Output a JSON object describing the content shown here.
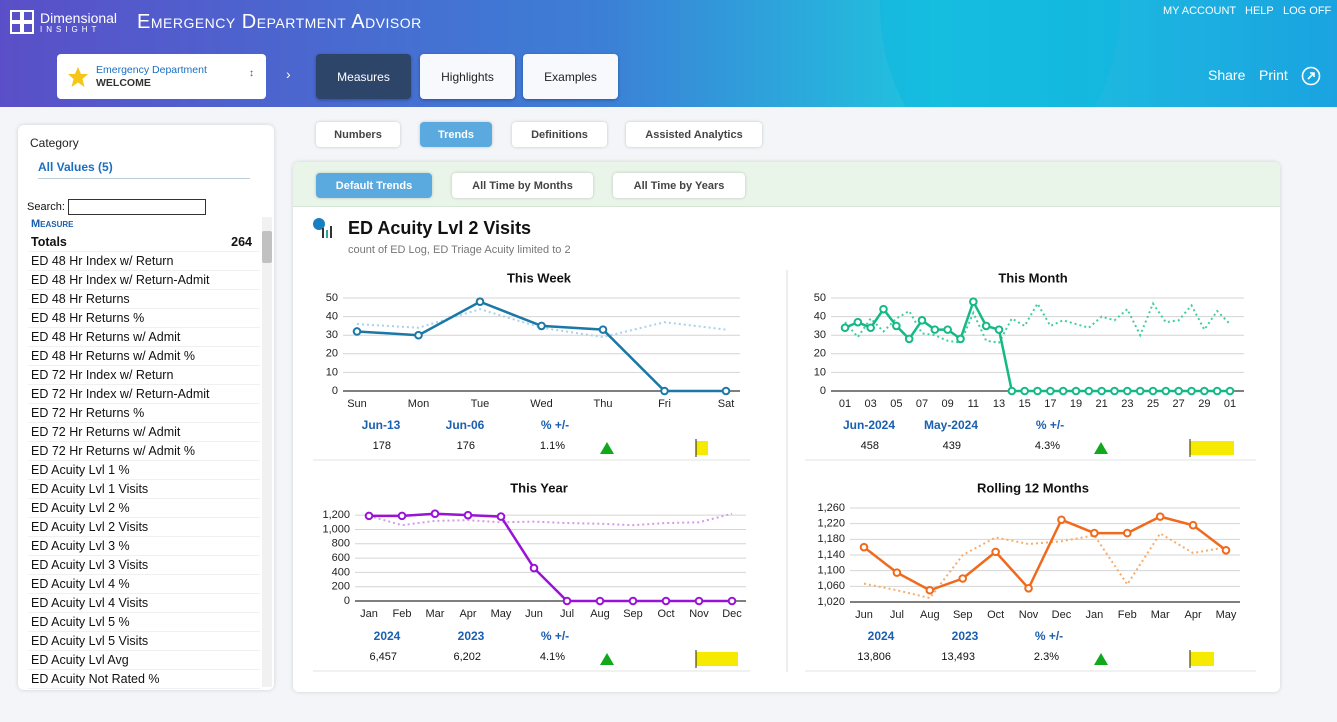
{
  "header": {
    "brand": "Dimensional",
    "brand_sub": "INSIGHT",
    "app_title": "Emergency Department Advisor",
    "links": [
      "MY ACCOUNT",
      "HELP",
      "LOG OFF"
    ],
    "selector": {
      "title": "Emergency Department",
      "subtitle": "WELCOME"
    },
    "tabs": [
      "Measures",
      "Highlights",
      "Examples"
    ],
    "actions": [
      "Share",
      "Print"
    ]
  },
  "sidebar": {
    "heading": "Category",
    "filter": "All Values (5)",
    "search_label": "Search:",
    "column": "Measure",
    "totals": {
      "label": "Totals",
      "value": 264
    },
    "items": [
      "ED 48 Hr Index w/ Return",
      "ED 48 Hr Index w/ Return-Admit",
      "ED 48 Hr Returns",
      "ED 48 Hr Returns %",
      "ED 48 Hr Returns w/ Admit",
      "ED 48 Hr Returns w/ Admit %",
      "ED 72 Hr Index w/ Return",
      "ED 72 Hr Index w/ Return-Admit",
      "ED 72 Hr Returns %",
      "ED 72 Hr Returns w/ Admit",
      "ED 72 Hr Returns w/ Admit %",
      "ED Acuity Lvl 1 %",
      "ED Acuity Lvl 1 Visits",
      "ED Acuity Lvl 2 %",
      "ED Acuity Lvl 2 Visits",
      "ED Acuity Lvl 3 %",
      "ED Acuity Lvl 3 Visits",
      "ED Acuity Lvl 4 %",
      "ED Acuity Lvl 4 Visits",
      "ED Acuity Lvl 5 %",
      "ED Acuity Lvl 5 Visits",
      "ED Acuity Lvl Avg",
      "ED Acuity Not Rated %"
    ]
  },
  "view_tabs": [
    "Numbers",
    "Trends",
    "Definitions",
    "Assisted Analytics"
  ],
  "trend_tabs": [
    "Default Trends",
    "All Time by Months",
    "All Time by Years"
  ],
  "report": {
    "title": "ED Acuity Lvl 2 Visits",
    "subtitle": "count of ED Log, ED Triage Acuity limited to 2"
  },
  "chart_data": [
    {
      "type": "line",
      "title": "This Week",
      "categories": [
        "Sun",
        "Mon",
        "Tue",
        "Wed",
        "Thu",
        "Fri",
        "Sat"
      ],
      "series": [
        {
          "color": "#1b78a6",
          "style": "solid",
          "values": [
            32,
            30,
            48,
            35,
            33,
            0,
            0
          ]
        },
        {
          "color": "#a9d1ec",
          "style": "dotted",
          "values": [
            36,
            34,
            44,
            34,
            29,
            37,
            33
          ]
        }
      ],
      "ylim": [
        0,
        50
      ],
      "yticks": [
        0,
        10,
        20,
        30,
        40,
        50
      ],
      "grid": true,
      "summary": {
        "columns": [
          "Jun-13",
          "Jun-06",
          "% +/-"
        ],
        "cells": [
          "178",
          "176",
          "1.1%"
        ]
      }
    },
    {
      "type": "line",
      "title": "This Month",
      "categories": [
        "01",
        null,
        "03",
        null,
        "05",
        null,
        "07",
        null,
        "09",
        null,
        "11",
        null,
        "13",
        null,
        "15",
        null,
        "17",
        null,
        "19",
        null,
        "21",
        null,
        "23",
        null,
        "25",
        null,
        "27",
        null,
        "29",
        null,
        "01"
      ],
      "series": [
        {
          "color": "#14b985",
          "style": "solid",
          "values": [
            34,
            37,
            34,
            44,
            35,
            28,
            38,
            33,
            33,
            28,
            48,
            35,
            33,
            0,
            0,
            0,
            0,
            0,
            0,
            0,
            0,
            0,
            0,
            0,
            0,
            0,
            0,
            0,
            0,
            0,
            0
          ]
        },
        {
          "color": "#3fcf9c",
          "style": "dotted",
          "values": [
            37,
            29,
            39,
            32,
            39,
            43,
            31,
            30,
            27,
            26,
            42,
            27,
            26,
            39,
            35,
            47,
            35,
            38,
            36,
            34,
            40,
            38,
            44,
            30,
            47,
            37,
            38,
            46,
            33,
            43,
            36
          ]
        }
      ],
      "ylim": [
        0,
        50
      ],
      "yticks": [
        0,
        10,
        20,
        30,
        40,
        50
      ],
      "grid": true,
      "summary": {
        "columns": [
          "Jun-2024",
          "May-2024",
          "% +/-"
        ],
        "cells": [
          "458",
          "439",
          "4.3%"
        ]
      }
    },
    {
      "type": "line",
      "title": "This Year",
      "categories": [
        "Jan",
        "Feb",
        "Mar",
        "Apr",
        "May",
        "Jun",
        "Jul",
        "Aug",
        "Sep",
        "Oct",
        "Nov",
        "Dec"
      ],
      "series": [
        {
          "color": "#9a12d6",
          "style": "solid",
          "values": [
            1190,
            1190,
            1220,
            1200,
            1180,
            460,
            0,
            0,
            0,
            0,
            0,
            0
          ]
        },
        {
          "color": "#d49ae9",
          "style": "dotted",
          "values": [
            1190,
            1060,
            1120,
            1130,
            1100,
            1110,
            1090,
            1080,
            1060,
            1090,
            1100,
            1220
          ]
        }
      ],
      "ylim": [
        0,
        1300
      ],
      "yticks": [
        0,
        200,
        400,
        600,
        800,
        {
          "value": 1000,
          "label": "1,000"
        },
        {
          "value": 1200,
          "label": "1,200"
        }
      ],
      "grid": true,
      "summary": {
        "columns": [
          "2024",
          "2023",
          "% +/-"
        ],
        "cells": [
          "6,457",
          "6,202",
          "4.1%"
        ]
      }
    },
    {
      "type": "line",
      "title": "Rolling 12 Months",
      "categories": [
        "Jun",
        "Jul",
        "Aug",
        "Sep",
        "Oct",
        "Nov",
        "Dec",
        "Jan",
        "Feb",
        "Mar",
        "Apr",
        "May"
      ],
      "series": [
        {
          "color": "#f06a1d",
          "style": "solid",
          "values": [
            1160,
            1095,
            1050,
            1080,
            1148,
            1055,
            1230,
            1196,
            1196,
            1238,
            1216,
            1152
          ]
        },
        {
          "color": "#f7ad6a",
          "style": "dotted",
          "values": [
            1067,
            1050,
            1030,
            1140,
            1185,
            1168,
            1175,
            1190,
            1065,
            1195,
            1145,
            1160
          ]
        }
      ],
      "ylim": [
        1020,
        1260
      ],
      "yticks": [
        {
          "value": 1020,
          "label": "1,020"
        },
        {
          "value": 1060,
          "label": "1,060"
        },
        {
          "value": 1100,
          "label": "1,100"
        },
        {
          "value": 1140,
          "label": "1,140"
        },
        {
          "value": 1180,
          "label": "1,180"
        },
        {
          "value": 1220,
          "label": "1,220"
        },
        {
          "value": 1260,
          "label": "1,260"
        }
      ],
      "grid": true,
      "summary": {
        "columns": [
          "2024",
          "2023",
          "% +/-"
        ],
        "cells": [
          "13,806",
          "13,493",
          "2.3%"
        ]
      }
    }
  ]
}
